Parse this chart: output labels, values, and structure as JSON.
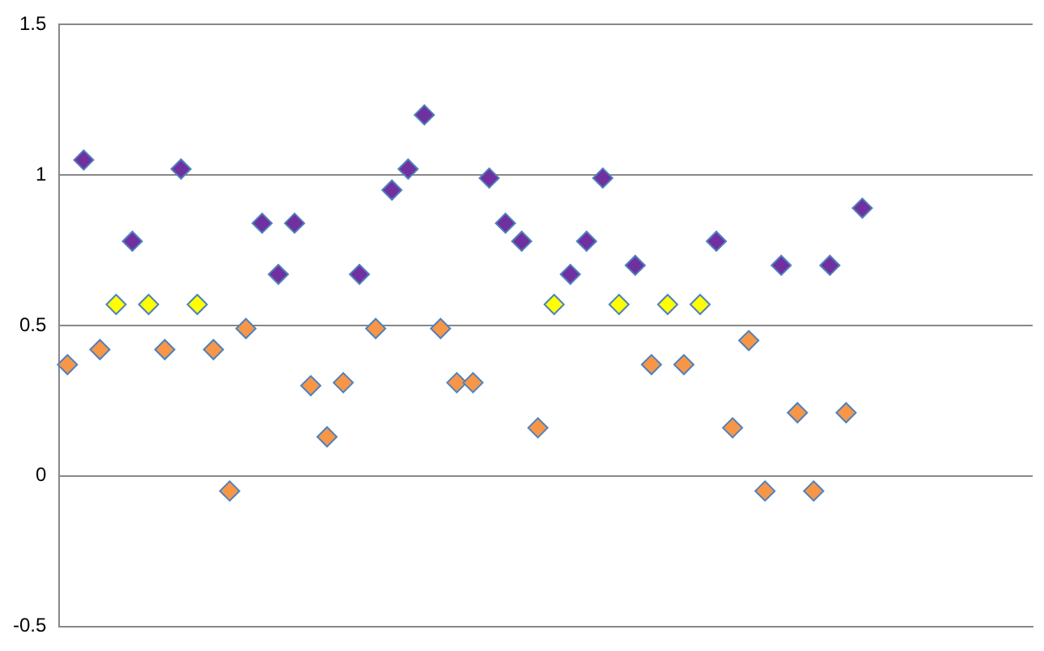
{
  "chart_data": {
    "type": "scatter",
    "categories": [
      null,
      null,
      null,
      null,
      null,
      null,
      null,
      null,
      null,
      null,
      null,
      null,
      null,
      null,
      null,
      null,
      null,
      null,
      null,
      null,
      null,
      null,
      null,
      null,
      null,
      null,
      null,
      null,
      null,
      null,
      null,
      null,
      null,
      null,
      null,
      null,
      null,
      null,
      null,
      null,
      null,
      null,
      null,
      null,
      null,
      null,
      null,
      null,
      null,
      null,
      null,
      null,
      null,
      null,
      null,
      null,
      null,
      null,
      null,
      null
    ],
    "series": [
      {
        "color": "#f79646",
        "values": [
          0.37,
          null,
          0.42,
          null,
          null,
          null,
          0.42,
          null,
          null,
          0.42,
          -0.05,
          0.49,
          null,
          null,
          null,
          0.3,
          0.13,
          0.31,
          null,
          0.49,
          null,
          null,
          null,
          0.49,
          0.31,
          0.31,
          null,
          null,
          null,
          0.16,
          null,
          null,
          null,
          null,
          null,
          null,
          0.37,
          null,
          0.37,
          null,
          null,
          0.16,
          0.45,
          -0.05,
          null,
          0.21,
          -0.05,
          null,
          0.21,
          null,
          null,
          null,
          null,
          null,
          null,
          null,
          null,
          null,
          null,
          null
        ]
      },
      {
        "color": "#ffff00",
        "values": [
          null,
          null,
          null,
          0.57,
          null,
          0.57,
          null,
          null,
          0.57,
          null,
          null,
          null,
          null,
          null,
          null,
          null,
          null,
          null,
          null,
          null,
          null,
          null,
          null,
          null,
          null,
          null,
          null,
          null,
          null,
          null,
          0.57,
          null,
          null,
          null,
          0.57,
          null,
          null,
          0.57,
          null,
          0.57,
          null,
          null,
          null,
          null,
          null,
          null,
          null,
          null,
          null,
          null,
          null,
          null,
          null,
          null,
          null,
          null,
          null,
          null,
          null,
          null
        ]
      },
      {
        "color": "#7030a0",
        "values": [
          null,
          1.05,
          null,
          null,
          0.78,
          null,
          null,
          1.02,
          null,
          null,
          null,
          null,
          0.84,
          0.67,
          0.84,
          null,
          null,
          null,
          0.67,
          null,
          0.95,
          1.02,
          1.2,
          null,
          null,
          null,
          0.99,
          0.84,
          0.78,
          null,
          null,
          0.67,
          0.78,
          0.99,
          null,
          0.7,
          null,
          null,
          null,
          null,
          0.78,
          null,
          null,
          null,
          0.7,
          null,
          null,
          0.7,
          null,
          0.89,
          null,
          null,
          null,
          null,
          null,
          null,
          null,
          null,
          null,
          null
        ]
      }
    ],
    "ylim": [
      -0.5,
      1.5
    ],
    "yticks": [
      -0.5,
      0,
      0.5,
      1,
      1.5
    ],
    "grid": "y",
    "legend": false,
    "tick_labels": "y",
    "marker": "diamond"
  }
}
